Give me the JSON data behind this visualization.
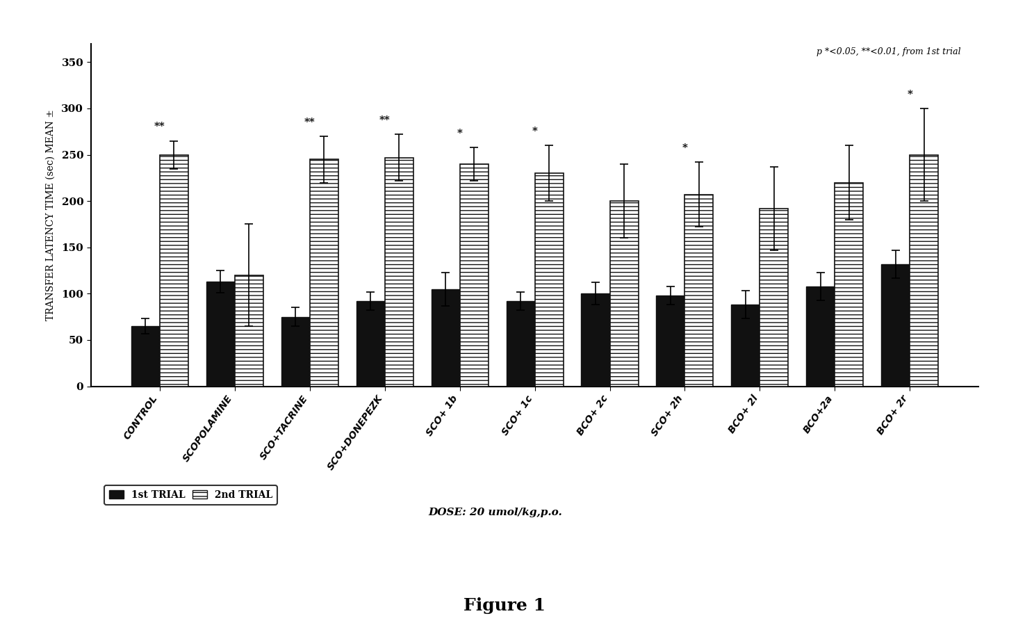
{
  "categories": [
    "CONTROL",
    "SCOPOLAMINE",
    "SCO+TACRINE",
    "SCO+DONEPEZK",
    "SCO+ 1b",
    "SCO+ 1c",
    "BCO+ 2c",
    "SCO+ 2h",
    "BCO+ 2l",
    "BCO+2a",
    "BCO+ 2r"
  ],
  "bar1_values": [
    65,
    113,
    75,
    92,
    105,
    92,
    100,
    98,
    88,
    108,
    132
  ],
  "bar2_values": [
    250,
    120,
    245,
    247,
    240,
    230,
    200,
    207,
    192,
    220,
    250
  ],
  "bar1_errors": [
    8,
    12,
    10,
    10,
    18,
    10,
    12,
    10,
    15,
    15,
    15
  ],
  "bar2_errors": [
    15,
    55,
    25,
    25,
    18,
    30,
    40,
    35,
    45,
    40,
    50
  ],
  "significance_above": [
    "**",
    "",
    "**",
    "**",
    "*",
    "*",
    "",
    "*",
    "",
    "",
    "*"
  ],
  "ylabel": "TRANSFER LATENCY TIME (sec) MEAN ±",
  "ylim": [
    0,
    370
  ],
  "yticks": [
    0,
    50,
    100,
    150,
    200,
    250,
    300,
    350
  ],
  "title": "Figure 1",
  "annotation": "p *<0.05, **<0.01, from 1st trial",
  "dose_text": "DOSE: 20 umol/kg,p.o.",
  "legend_label1": "1st TRIAL",
  "legend_label2": "2nd TRIAL",
  "bar1_color": "#111111",
  "bar2_hatch": "---",
  "bar2_facecolor": "#ffffff",
  "bar2_edgecolor": "#111111",
  "bar_width": 0.38,
  "background_color": "#ffffff"
}
